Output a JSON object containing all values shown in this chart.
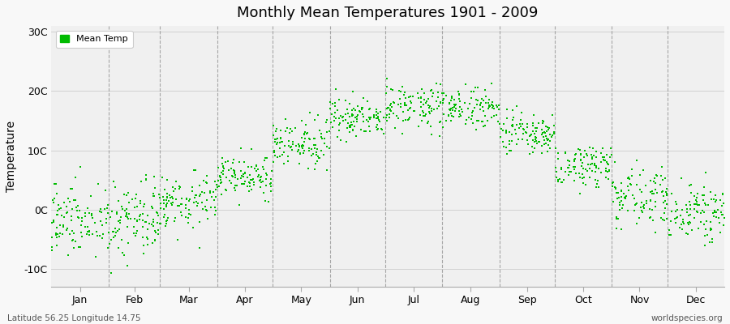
{
  "title": "Monthly Mean Temperatures 1901 - 2009",
  "ylabel": "Temperature",
  "xlabel_labels": [
    "Jan",
    "Feb",
    "Mar",
    "Apr",
    "May",
    "Jun",
    "Jul",
    "Aug",
    "Sep",
    "Oct",
    "Nov",
    "Dec"
  ],
  "ytick_labels": [
    "-10C",
    "0C",
    "10C",
    "20C",
    "30C"
  ],
  "ytick_values": [
    -10,
    0,
    10,
    20,
    30
  ],
  "ylim": [
    -13,
    31
  ],
  "xlim": [
    0,
    365
  ],
  "dot_color": "#00BB00",
  "dot_size": 3.5,
  "plot_bg_color": "#F0F0F0",
  "fig_bg_color": "#F8F8F8",
  "vline_color": "#888888",
  "legend_label": "Mean Temp",
  "subtitle_left": "Latitude 56.25 Longitude 14.75",
  "subtitle_right": "worldspecies.org",
  "num_years": 109,
  "monthly_means": [
    -1.5,
    -1.8,
    1.5,
    5.5,
    11.0,
    15.5,
    17.5,
    17.0,
    12.5,
    7.5,
    2.5,
    -0.5
  ],
  "monthly_stds": [
    3.2,
    3.5,
    2.3,
    1.8,
    1.8,
    1.8,
    1.8,
    1.8,
    1.8,
    1.8,
    2.3,
    2.3
  ]
}
